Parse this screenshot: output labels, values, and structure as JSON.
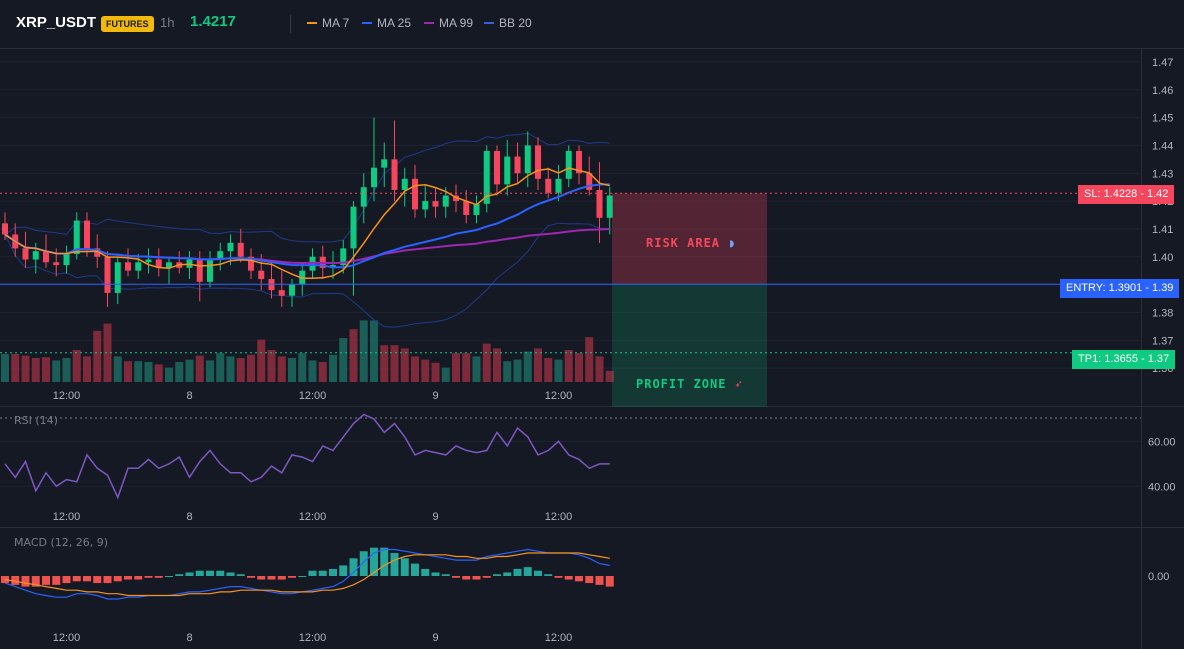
{
  "header": {
    "symbol": "XRP_USDT",
    "badge": "FUTURES",
    "timeframe": "1h",
    "last_price": "1.4217",
    "legend": [
      {
        "label": "MA 7",
        "color": "#f7931a"
      },
      {
        "label": "MA 25",
        "color": "#2962ff"
      },
      {
        "label": "MA 99",
        "color": "#9c27b0"
      },
      {
        "label": "BB 20",
        "color": "#1e3a8a"
      }
    ]
  },
  "colors": {
    "up": "#0ecb81",
    "down": "#f6465d",
    "vol_up": "#1b5e57",
    "vol_down": "#7f2a3a",
    "rsi": "#7e57c2",
    "macd": "#2962ff",
    "signal": "#f7931a",
    "hist_up": "#26a69a",
    "hist_down": "#ef5350"
  },
  "chart_data": [
    {
      "type": "candlestick",
      "name": "price",
      "ylim": [
        1.355,
        1.475
      ],
      "y_ticks": [
        "1.47",
        "1.46",
        "1.45",
        "1.44",
        "1.43",
        "1.42",
        "1.41",
        "1.40",
        "1.39",
        "1.38",
        "1.37",
        "1.36"
      ],
      "x_ticks": [
        "12:00",
        "8",
        "12:00",
        "9",
        "12:00"
      ],
      "candles": [
        [
          1.412,
          1.416,
          1.406,
          1.408
        ],
        [
          1.408,
          1.412,
          1.4,
          1.403
        ],
        [
          1.403,
          1.409,
          1.396,
          1.399
        ],
        [
          1.399,
          1.405,
          1.394,
          1.402
        ],
        [
          1.402,
          1.408,
          1.396,
          1.398
        ],
        [
          1.398,
          1.403,
          1.393,
          1.397
        ],
        [
          1.397,
          1.404,
          1.394,
          1.401
        ],
        [
          1.401,
          1.416,
          1.399,
          1.413
        ],
        [
          1.413,
          1.416,
          1.4,
          1.403
        ],
        [
          1.403,
          1.408,
          1.396,
          1.4
        ],
        [
          1.4,
          1.402,
          1.382,
          1.387
        ],
        [
          1.387,
          1.4,
          1.383,
          1.398
        ],
        [
          1.398,
          1.403,
          1.393,
          1.395
        ],
        [
          1.395,
          1.401,
          1.392,
          1.398
        ],
        [
          1.398,
          1.403,
          1.394,
          1.399
        ],
        [
          1.399,
          1.403,
          1.393,
          1.396
        ],
        [
          1.396,
          1.4,
          1.39,
          1.398
        ],
        [
          1.398,
          1.402,
          1.394,
          1.396
        ],
        [
          1.396,
          1.402,
          1.392,
          1.399
        ],
        [
          1.399,
          1.402,
          1.384,
          1.391
        ],
        [
          1.391,
          1.402,
          1.389,
          1.399
        ],
        [
          1.399,
          1.405,
          1.395,
          1.402
        ],
        [
          1.402,
          1.408,
          1.397,
          1.405
        ],
        [
          1.405,
          1.41,
          1.398,
          1.4
        ],
        [
          1.4,
          1.403,
          1.392,
          1.395
        ],
        [
          1.395,
          1.401,
          1.388,
          1.392
        ],
        [
          1.392,
          1.398,
          1.385,
          1.388
        ],
        [
          1.388,
          1.395,
          1.382,
          1.386
        ],
        [
          1.386,
          1.392,
          1.382,
          1.39
        ],
        [
          1.39,
          1.398,
          1.386,
          1.395
        ],
        [
          1.395,
          1.403,
          1.392,
          1.4
        ],
        [
          1.4,
          1.404,
          1.392,
          1.396
        ],
        [
          1.396,
          1.402,
          1.392,
          1.397
        ],
        [
          1.397,
          1.406,
          1.394,
          1.403
        ],
        [
          1.403,
          1.42,
          1.386,
          1.418
        ],
        [
          1.418,
          1.43,
          1.412,
          1.425
        ],
        [
          1.425,
          1.45,
          1.42,
          1.432
        ],
        [
          1.432,
          1.441,
          1.425,
          1.435
        ],
        [
          1.435,
          1.449,
          1.42,
          1.424
        ],
        [
          1.424,
          1.432,
          1.418,
          1.428
        ],
        [
          1.428,
          1.433,
          1.414,
          1.417
        ],
        [
          1.417,
          1.426,
          1.414,
          1.42
        ],
        [
          1.42,
          1.425,
          1.414,
          1.418
        ],
        [
          1.418,
          1.425,
          1.414,
          1.422
        ],
        [
          1.422,
          1.426,
          1.416,
          1.42
        ],
        [
          1.42,
          1.424,
          1.412,
          1.415
        ],
        [
          1.415,
          1.422,
          1.412,
          1.419
        ],
        [
          1.419,
          1.44,
          1.416,
          1.438
        ],
        [
          1.438,
          1.44,
          1.422,
          1.426
        ],
        [
          1.426,
          1.442,
          1.422,
          1.436
        ],
        [
          1.436,
          1.441,
          1.426,
          1.43
        ],
        [
          1.43,
          1.445,
          1.425,
          1.44
        ],
        [
          1.44,
          1.443,
          1.424,
          1.428
        ],
        [
          1.428,
          1.432,
          1.421,
          1.423
        ],
        [
          1.423,
          1.433,
          1.42,
          1.428
        ],
        [
          1.428,
          1.44,
          1.425,
          1.438
        ],
        [
          1.438,
          1.44,
          1.426,
          1.43
        ],
        [
          1.43,
          1.436,
          1.422,
          1.424
        ],
        [
          1.424,
          1.434,
          1.405,
          1.414
        ],
        [
          1.414,
          1.425,
          1.408,
          1.422
        ]
      ],
      "volumes": [
        [
          0.35,
          0
        ],
        [
          0.35,
          1
        ],
        [
          0.33,
          1
        ],
        [
          0.3,
          1
        ],
        [
          0.31,
          1
        ],
        [
          0.27,
          0
        ],
        [
          0.3,
          0
        ],
        [
          0.4,
          1
        ],
        [
          0.32,
          1
        ],
        [
          0.64,
          1
        ],
        [
          0.73,
          1
        ],
        [
          0.32,
          0
        ],
        [
          0.26,
          1
        ],
        [
          0.26,
          0
        ],
        [
          0.25,
          0
        ],
        [
          0.22,
          1
        ],
        [
          0.18,
          0
        ],
        [
          0.25,
          0
        ],
        [
          0.28,
          0
        ],
        [
          0.33,
          1
        ],
        [
          0.27,
          0
        ],
        [
          0.36,
          0
        ],
        [
          0.32,
          0
        ],
        [
          0.3,
          1
        ],
        [
          0.34,
          1
        ],
        [
          0.53,
          1
        ],
        [
          0.4,
          1
        ],
        [
          0.32,
          1
        ],
        [
          0.3,
          0
        ],
        [
          0.36,
          0
        ],
        [
          0.27,
          0
        ],
        [
          0.25,
          1
        ],
        [
          0.34,
          0
        ],
        [
          0.55,
          0
        ],
        [
          0.66,
          1
        ],
        [
          0.77,
          0
        ],
        [
          0.77,
          0
        ],
        [
          0.46,
          1
        ],
        [
          0.46,
          1
        ],
        [
          0.42,
          1
        ],
        [
          0.32,
          1
        ],
        [
          0.28,
          1
        ],
        [
          0.24,
          1
        ],
        [
          0.18,
          0
        ],
        [
          0.36,
          1
        ],
        [
          0.36,
          1
        ],
        [
          0.32,
          0
        ],
        [
          0.48,
          1
        ],
        [
          0.42,
          1
        ],
        [
          0.26,
          0
        ],
        [
          0.28,
          0
        ],
        [
          0.38,
          0
        ],
        [
          0.42,
          1
        ],
        [
          0.3,
          1
        ],
        [
          0.28,
          0
        ],
        [
          0.4,
          1
        ],
        [
          0.36,
          1
        ],
        [
          0.56,
          1
        ],
        [
          0.32,
          1
        ],
        [
          0.14,
          1
        ]
      ]
    },
    {
      "type": "line",
      "name": "RSI (14)",
      "ylim": [
        33,
        74
      ],
      "y_ticks": [
        "60.00",
        "40.00"
      ],
      "x_ticks": [
        "12:00",
        "8",
        "12:00",
        "9",
        "12:00"
      ],
      "values": [
        50,
        44,
        51,
        38,
        46,
        40,
        43,
        42,
        54,
        48,
        45,
        35,
        48,
        48,
        52,
        48,
        50,
        53,
        44,
        51,
        56,
        50,
        46,
        46,
        42,
        44,
        49,
        46,
        54,
        53,
        51,
        58,
        56,
        62,
        68,
        72,
        70,
        64,
        68,
        62,
        54,
        56,
        55,
        54,
        58,
        56,
        55,
        56,
        64,
        58,
        66,
        62,
        54,
        56,
        60,
        54,
        52,
        48,
        50,
        50
      ]
    },
    {
      "type": "line",
      "name": "MACD (12, 26, 9)",
      "ylim": [
        -0.0026,
        0.0026
      ],
      "y_ticks": [
        "0.00"
      ],
      "x_ticks": [
        "12:00",
        "8",
        "12:00",
        "9",
        "12:00"
      ],
      "macd": [
        -0.0004,
        -0.0006,
        -0.0008,
        -0.001,
        -0.0011,
        -0.0012,
        -0.0012,
        -0.001,
        -0.001,
        -0.0011,
        -0.0013,
        -0.0013,
        -0.0012,
        -0.0012,
        -0.0011,
        -0.0011,
        -0.0011,
        -0.001,
        -0.0009,
        -0.0009,
        -0.0008,
        -0.0007,
        -0.0006,
        -0.0006,
        -0.0007,
        -0.0008,
        -0.0009,
        -0.001,
        -0.001,
        -0.0009,
        -0.0008,
        -0.0007,
        -0.0006,
        -0.0003,
        0.0002,
        0.0008,
        0.0013,
        0.0015,
        0.0015,
        0.0014,
        0.0013,
        0.0012,
        0.0011,
        0.001,
        0.0009,
        0.0009,
        0.0009,
        0.0011,
        0.0012,
        0.0013,
        0.0014,
        0.0015,
        0.0014,
        0.0013,
        0.0013,
        0.0013,
        0.0012,
        0.001,
        0.0007,
        0.0006
      ],
      "signal": [
        -0.0002,
        -0.0003,
        -0.0004,
        -0.0005,
        -0.0006,
        -0.0007,
        -0.0008,
        -0.0008,
        -0.0009,
        -0.0009,
        -0.001,
        -0.001,
        -0.0011,
        -0.0011,
        -0.0011,
        -0.0011,
        -0.0011,
        -0.0011,
        -0.001,
        -0.001,
        -0.001,
        -0.0009,
        -0.0009,
        -0.0008,
        -0.0008,
        -0.0008,
        -0.0008,
        -0.0009,
        -0.0009,
        -0.0009,
        -0.0009,
        -0.0008,
        -0.0008,
        -0.0007,
        -0.0005,
        -0.0002,
        0.0002,
        0.0006,
        0.0009,
        0.0011,
        0.0012,
        0.0012,
        0.0012,
        0.0012,
        0.0011,
        0.0011,
        0.001,
        0.001,
        0.0011,
        0.0011,
        0.0012,
        0.0013,
        0.0013,
        0.0013,
        0.0013,
        0.0013,
        0.0013,
        0.0012,
        0.0011,
        0.001
      ],
      "hist": [
        -0.0004,
        -0.0005,
        -0.0006,
        -0.0006,
        -0.0005,
        -0.0005,
        -0.0004,
        -0.0003,
        -0.0003,
        -0.0004,
        -0.0004,
        -0.0003,
        -0.0002,
        -0.0002,
        -0.0001,
        -0.0001,
        0.0,
        0.0001,
        0.0002,
        0.0003,
        0.0003,
        0.0003,
        0.0002,
        0.0001,
        -0.0001,
        -0.0002,
        -0.0002,
        -0.0002,
        -0.0001,
        0.0,
        0.0003,
        0.0003,
        0.0004,
        0.0006,
        0.001,
        0.0014,
        0.0016,
        0.0016,
        0.0013,
        0.001,
        0.0007,
        0.0004,
        0.0002,
        0.0001,
        -0.0001,
        -0.0002,
        -0.0002,
        -0.0001,
        0.0001,
        0.0002,
        0.0004,
        0.0005,
        0.0003,
        0.0001,
        -0.0001,
        -0.0002,
        -0.0003,
        -0.0004,
        -0.0005,
        -0.0006
      ]
    }
  ],
  "levels": {
    "sl": {
      "label": "SL: 1.4228",
      "axis": "1.42",
      "value": 1.4228,
      "color": "#f6465d"
    },
    "entry": {
      "label": "ENTRY: 1.3901",
      "axis": "1.39",
      "value": 1.3901,
      "color": "#2962ff"
    },
    "tp": {
      "label": "TP1: 1.3655",
      "axis": "1.37",
      "value": 1.3655,
      "color": "#0ecb81"
    }
  },
  "zones": {
    "risk": "RISK AREA",
    "profit": "PROFIT ZONE"
  }
}
